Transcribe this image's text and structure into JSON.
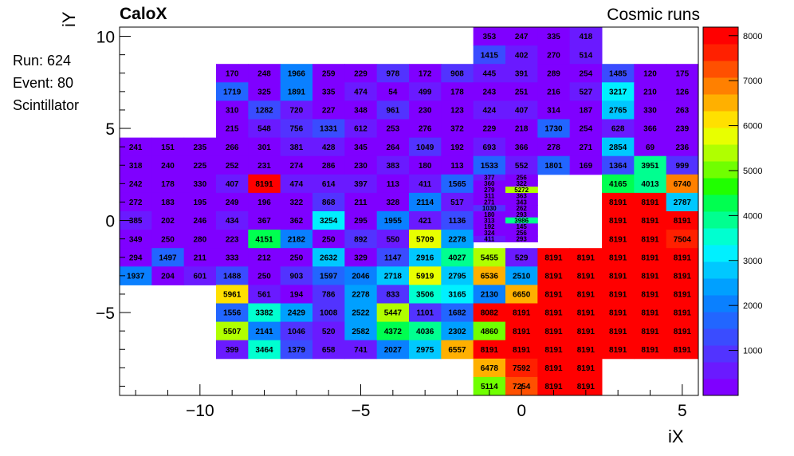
{
  "chart_data": {
    "type": "heatmap",
    "title": "CaloX",
    "subtitle": "Cosmic runs",
    "xlabel": "iX",
    "ylabel": "iY",
    "xlim": [
      -12.5,
      5.5
    ],
    "ylim": [
      -9.5,
      10.5
    ],
    "zlim": [
      0,
      8191
    ],
    "x_ticks": [
      -10,
      -5,
      0,
      5
    ],
    "x_tick_labels": [
      "−10",
      "−5",
      "0",
      "5"
    ],
    "y_ticks": [
      -5,
      0,
      5,
      10
    ],
    "y_tick_labels": [
      "−5",
      "0",
      "5",
      "10"
    ],
    "colorbar_ticks": [
      1000,
      2000,
      3000,
      4000,
      5000,
      6000,
      7000,
      8000
    ],
    "colorbar_tick_labels": [
      "1000",
      "2000",
      "3000",
      "4000",
      "5000",
      "6000",
      "7000",
      "8000"
    ],
    "grid": false,
    "colormap": "rainbow",
    "rows": [
      {
        "y": 10,
        "x0": -1,
        "values": [
          353,
          247,
          335,
          418
        ]
      },
      {
        "y": 9,
        "x0": -1,
        "values": [
          1415,
          402,
          270,
          514
        ]
      },
      {
        "y": 8,
        "x0": -9,
        "values": [
          170,
          248,
          1966,
          259,
          229,
          978,
          172,
          908,
          445,
          391,
          289,
          254,
          1485,
          120,
          175
        ]
      },
      {
        "y": 7,
        "x0": -9,
        "values": [
          1719,
          325,
          1891,
          335,
          474,
          54,
          499,
          178,
          243,
          251,
          216,
          527,
          3217,
          210,
          126
        ]
      },
      {
        "y": 6,
        "x0": -9,
        "values": [
          310,
          1282,
          720,
          227,
          348,
          961,
          230,
          123,
          424,
          407,
          314,
          187,
          2765,
          330,
          263
        ]
      },
      {
        "y": 5,
        "x0": -9,
        "values": [
          215,
          548,
          756,
          1331,
          612,
          253,
          276,
          372,
          229,
          218,
          1730,
          254,
          628,
          366,
          239
        ]
      },
      {
        "y": 4,
        "x0": -12,
        "values": [
          241,
          151,
          235,
          266,
          301,
          381,
          428,
          345,
          264,
          1049,
          192,
          693,
          366,
          278,
          271,
          2854,
          69,
          236
        ]
      },
      {
        "y": 3,
        "x0": -12,
        "values": [
          318,
          240,
          225,
          252,
          231,
          274,
          286,
          230,
          383,
          180,
          113,
          1533,
          552,
          1801,
          169,
          1364,
          3951,
          999
        ]
      },
      {
        "y": 2,
        "x0": -12,
        "values": [
          242,
          178,
          330,
          407,
          8191,
          474,
          614,
          397,
          113,
          411,
          1565,
          null,
          null,
          null,
          null,
          4165,
          4013,
          6740
        ]
      },
      {
        "y": 1,
        "x0": -12,
        "values": [
          272,
          183,
          195,
          249,
          196,
          322,
          868,
          211,
          328,
          2114,
          517,
          null,
          null,
          null,
          null,
          8191,
          8191,
          2787
        ]
      },
      {
        "y": 0,
        "x0": -12,
        "values": [
          385,
          202,
          246,
          434,
          367,
          362,
          3254,
          295,
          1955,
          421,
          1136,
          null,
          null,
          null,
          null,
          8191,
          8191,
          8191
        ]
      },
      {
        "y": -1,
        "x0": -12,
        "values": [
          349,
          250,
          280,
          223,
          4151,
          2182,
          250,
          892,
          550,
          5709,
          2278,
          null,
          null,
          null,
          null,
          8191,
          8191,
          7504
        ]
      },
      {
        "y": -2,
        "x0": -12,
        "values": [
          294,
          1497,
          211,
          333,
          212,
          250,
          2632,
          329,
          1147,
          2916,
          4027,
          5455,
          529,
          8191,
          8191,
          8191,
          8191,
          8191
        ]
      },
      {
        "y": -3,
        "x0": -12,
        "values": [
          1937,
          204,
          601,
          1488,
          250,
          903,
          1597,
          2046,
          2718,
          5919,
          2795,
          6536,
          2510,
          8191,
          8191,
          8191,
          8191,
          8191
        ]
      },
      {
        "y": -4,
        "x0": -9,
        "values": [
          5961,
          561,
          194,
          786,
          2278,
          833,
          3506,
          3165,
          2130,
          6650,
          8191,
          8191,
          8191,
          8191,
          8191
        ]
      },
      {
        "y": -5,
        "x0": -9,
        "values": [
          1556,
          3382,
          2429,
          1008,
          2522,
          5447,
          1101,
          1682,
          8082,
          8191,
          8191,
          8191,
          8191,
          8191,
          8191
        ]
      },
      {
        "y": -6,
        "x0": -9,
        "values": [
          5507,
          2141,
          1046,
          520,
          2582,
          4372,
          4036,
          2302,
          4860,
          8191,
          8191,
          8191,
          8191,
          8191,
          8191
        ]
      },
      {
        "y": -7,
        "x0": -9,
        "values": [
          399,
          3464,
          1379,
          658,
          741,
          2027,
          2975,
          6557,
          8191,
          8191,
          8191,
          8191,
          8191,
          8191,
          8191
        ]
      },
      {
        "y": -8,
        "x0": -1,
        "values": [
          6478,
          7592,
          8191,
          8191
        ]
      },
      {
        "y": -9,
        "x0": -1,
        "values": [
          5114,
          7254,
          8191,
          8191
        ]
      }
    ],
    "fine_cells": [
      {
        "x": -1,
        "y": 2.33,
        "v": 377
      },
      {
        "x": 0,
        "y": 2.33,
        "v": 256
      },
      {
        "x": -1,
        "y": 2.0,
        "v": 360
      },
      {
        "x": 0,
        "y": 2.0,
        "v": 322
      },
      {
        "x": -1,
        "y": 1.67,
        "v": 279
      },
      {
        "x": 0,
        "y": 1.67,
        "v": 5272
      },
      {
        "x": -1,
        "y": 1.33,
        "v": 311
      },
      {
        "x": 0,
        "y": 1.33,
        "v": 363
      },
      {
        "x": -1,
        "y": 1.0,
        "v": 271
      },
      {
        "x": 0,
        "y": 1.0,
        "v": 343
      },
      {
        "x": -1,
        "y": 0.67,
        "v": 1030
      },
      {
        "x": 0,
        "y": 0.67,
        "v": 262
      },
      {
        "x": -1,
        "y": 0.33,
        "v": 180
      },
      {
        "x": 0,
        "y": 0.33,
        "v": 293
      },
      {
        "x": -1,
        "y": 0.0,
        "v": 313
      },
      {
        "x": 0,
        "y": 0.0,
        "v": 3986
      },
      {
        "x": -1,
        "y": -0.33,
        "v": 192
      },
      {
        "x": 0,
        "y": -0.33,
        "v": 145
      },
      {
        "x": -1,
        "y": -0.67,
        "v": 324
      },
      {
        "x": 0,
        "y": -0.67,
        "v": 256
      },
      {
        "x": -1,
        "y": -1.0,
        "v": 411
      },
      {
        "x": 0,
        "y": -1.0,
        "v": 293
      }
    ]
  },
  "info": {
    "run": "Run: 624",
    "event": "Event: 80",
    "detector": "Scintillator"
  },
  "colors": {
    "palette": [
      "#7f00ff",
      "#6a1aff",
      "#5233ff",
      "#3a4cff",
      "#2266ff",
      "#0a80ff",
      "#00a0ff",
      "#00c8ff",
      "#00f0ff",
      "#00ffd0",
      "#00ff90",
      "#00ff50",
      "#20ff00",
      "#70ff00",
      "#b0ff00",
      "#e8ff00",
      "#ffe000",
      "#ffb000",
      "#ff8000",
      "#ff5000",
      "#ff2000",
      "#ff0000"
    ]
  }
}
